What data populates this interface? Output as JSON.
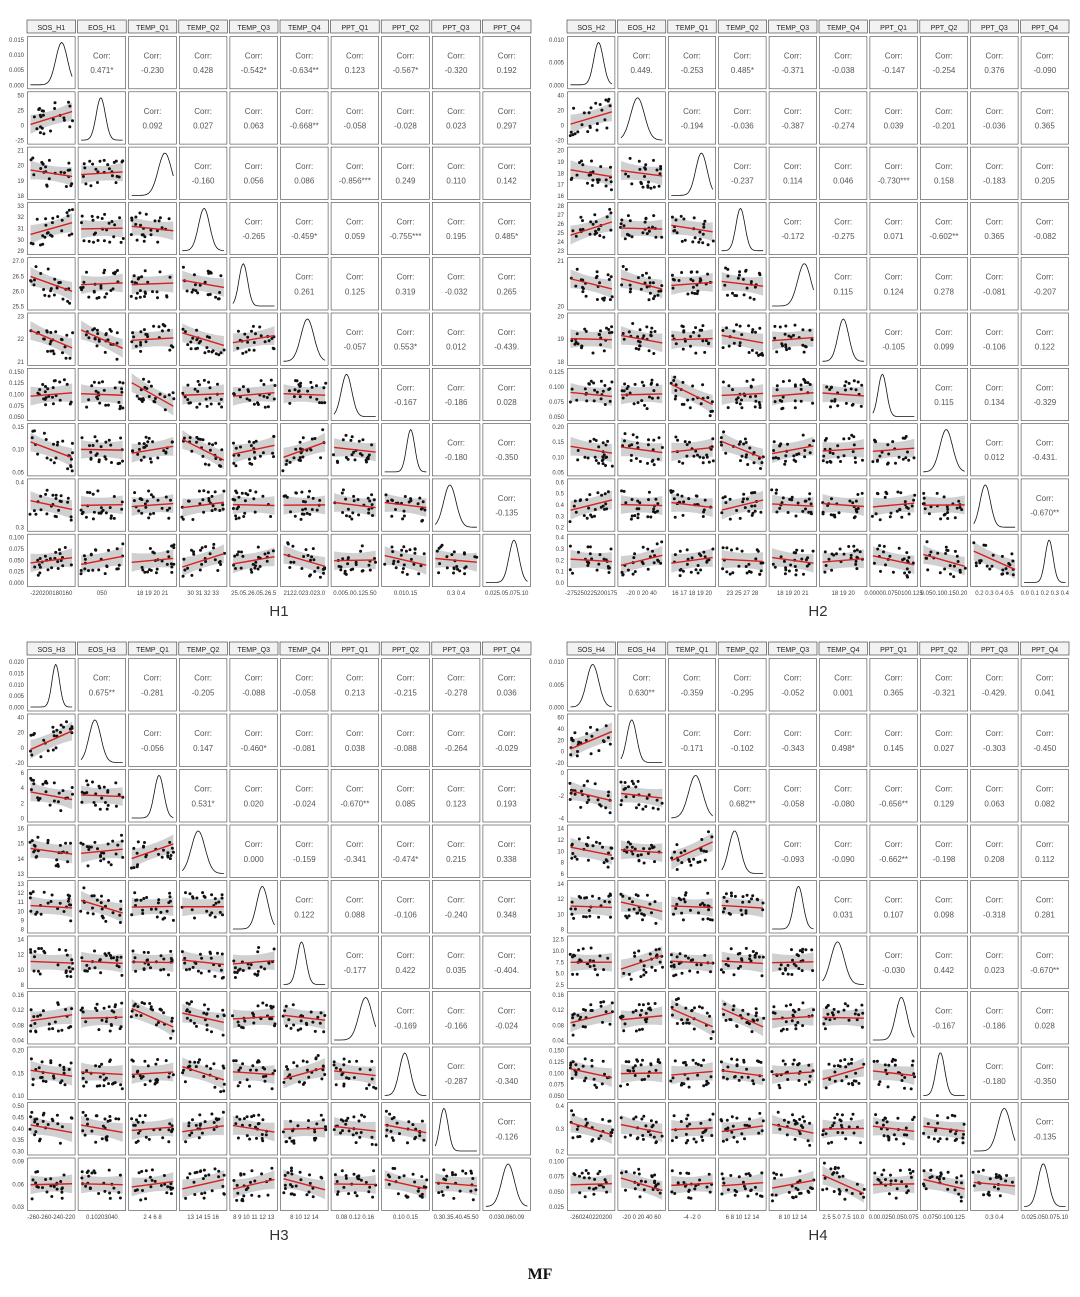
{
  "caption": "MF",
  "chart_data": [
    {
      "type": "scatter-matrix",
      "title": "H1",
      "variables": [
        "SOS_H1",
        "EOS_H1",
        "TEMP_Q1",
        "TEMP_Q2",
        "TEMP_Q3",
        "TEMP_Q4",
        "PPT_Q1",
        "PPT_Q2",
        "PPT_Q3",
        "PPT_Q4"
      ],
      "corr_label": "Corr:",
      "corr": [
        [
          "0.471*",
          "-0.230",
          "0.428",
          "-0.542*",
          "-0.634**",
          "0.123",
          "-0.567*",
          "-0.320",
          "0.192"
        ],
        [
          "0.092",
          "0.027",
          "0.063",
          "-0.668**",
          "-0.058",
          "-0.028",
          "0.023",
          "0.297"
        ],
        [
          "-0.160",
          "0.056",
          "0.086",
          "-0.856***",
          "0.249",
          "0.110",
          "0.142"
        ],
        [
          "-0.265",
          "-0.459*",
          "0.059",
          "-0.755***",
          "0.195",
          "0.485*"
        ],
        [
          "0.261",
          "0.125",
          "0.319",
          "-0.032",
          "0.265"
        ],
        [
          "-0.057",
          "0.553*",
          "0.012",
          "-0.439."
        ],
        [
          "-0.167",
          "-0.186",
          "0.028"
        ],
        [
          "-0.180",
          "-0.350"
        ],
        [
          "-0.135"
        ]
      ],
      "y_ticks": [
        [
          "0.015",
          "0.010",
          "0.005",
          "0.000"
        ],
        [
          "50",
          "25",
          "0",
          "-25"
        ],
        [
          "21",
          "20",
          "19",
          "18"
        ],
        [
          "33",
          "32",
          "31",
          "30",
          "29"
        ],
        [
          "27.0",
          "26.5",
          "26.0",
          "25.5"
        ],
        [
          "23",
          "22",
          "21"
        ],
        [
          "0.150",
          "0.125",
          "0.100",
          "0.075",
          "0.050"
        ],
        [
          "0.15",
          "0.10",
          "0.05"
        ],
        [
          "0.4",
          "0.3"
        ],
        [
          "0.100",
          "0.075",
          "0.050",
          "0.025",
          "0.000"
        ]
      ],
      "x_ticks": [
        "-220200180160",
        "050",
        "18 19 20 21",
        "30 31 32 33",
        "25.05.26.05.26.5",
        "2122.023.023.0",
        "0.005.00.125.50",
        "0.010.15",
        "0.3 0.4",
        "0.025.05.075.10"
      ]
    },
    {
      "type": "scatter-matrix",
      "title": "H2",
      "variables": [
        "SOS_H2",
        "EOS_H2",
        "TEMP_Q1",
        "TEMP_Q2",
        "TEMP_Q3",
        "TEMP_Q4",
        "PPT_Q1",
        "PPT_Q2",
        "PPT_Q3",
        "PPT_Q4"
      ],
      "corr_label": "Corr:",
      "corr": [
        [
          "0.449.",
          "-0.253",
          "0.485*",
          "-0.371",
          "-0.038",
          "-0.147",
          "-0.254",
          "0.376",
          "-0.090"
        ],
        [
          "-0.194",
          "-0.036",
          "-0.387",
          "-0.274",
          "0.039",
          "-0.201",
          "-0.036",
          "0.365"
        ],
        [
          "-0.237",
          "0.114",
          "0.046",
          "-0.730***",
          "0.158",
          "-0.183",
          "0.205"
        ],
        [
          "-0.172",
          "-0.275",
          "0.071",
          "-0.602**",
          "0.365",
          "-0.082"
        ],
        [
          "0.115",
          "0.124",
          "0.278",
          "-0.081",
          "-0.207"
        ],
        [
          "-0.105",
          "0.099",
          "-0.106",
          "0.122"
        ],
        [
          "0.115",
          "0.134",
          "-0.329"
        ],
        [
          "0.012",
          "-0.431."
        ],
        [
          "-0.670**"
        ]
      ],
      "y_ticks": [
        [
          "0.010",
          "0.005",
          "0.000"
        ],
        [
          "40",
          "20",
          "0",
          "-20"
        ],
        [
          "20",
          "19",
          "18",
          "17",
          "16"
        ],
        [
          "28",
          "27",
          "26",
          "25",
          "24",
          "23"
        ],
        [
          "21",
          "20"
        ],
        [
          "20",
          "19",
          "18"
        ],
        [
          "0.125",
          "0.100",
          "0.075",
          "0.050"
        ],
        [
          "0.20",
          "0.15",
          "0.10",
          "0.05"
        ],
        [
          "0.6",
          "0.5",
          "0.4",
          "0.3",
          "0.2"
        ],
        [
          "0.4",
          "0.3",
          "0.2",
          "0.1",
          "0.0"
        ]
      ],
      "x_ticks": [
        "-275250225200175",
        "-20 0 20 40",
        "16 17 18 19 20",
        "23 25 27 28",
        "18 19 20 21",
        "18 19 20",
        "0.00000.0750100.125",
        "0.050.100.150.20",
        "0.2 0.3 0.4 0.5",
        "0.0 0.1 0.2 0.3 0.4"
      ]
    },
    {
      "type": "scatter-matrix",
      "title": "H3",
      "variables": [
        "SOS_H3",
        "EOS_H3",
        "TEMP_Q1",
        "TEMP_Q2",
        "TEMP_Q3",
        "TEMP_Q4",
        "PPT_Q1",
        "PPT_Q2",
        "PPT_Q3",
        "PPT_Q4"
      ],
      "corr_label": "Corr:",
      "corr": [
        [
          "0.675**",
          "-0.281",
          "-0.205",
          "-0.088",
          "-0.058",
          "0.213",
          "-0.215",
          "-0.278",
          "0.036"
        ],
        [
          "-0.056",
          "0.147",
          "-0.460*",
          "-0.081",
          "0.038",
          "-0.088",
          "-0.264",
          "-0.029"
        ],
        [
          "0.531*",
          "0.020",
          "-0.024",
          "-0.670**",
          "0.085",
          "0.123",
          "0.193"
        ],
        [
          "0.000",
          "-0.159",
          "-0.341",
          "-0.474*",
          "0.215",
          "0.338"
        ],
        [
          "0.122",
          "0.088",
          "-0.106",
          "-0.240",
          "0.348"
        ],
        [
          "-0.177",
          "0.422",
          "0.035",
          "-0.404."
        ],
        [
          "-0.169",
          "-0.166",
          "-0.024"
        ],
        [
          "-0.287",
          "-0.340"
        ],
        [
          "-0.126"
        ]
      ],
      "y_ticks": [
        [
          "0.020",
          "0.015",
          "0.010",
          "0.005",
          "0.000"
        ],
        [
          "40",
          "20",
          "0",
          "-20"
        ],
        [
          "6",
          "4",
          "2",
          "0"
        ],
        [
          "16",
          "15",
          "14",
          "13"
        ],
        [
          "13",
          "12",
          "11",
          "10",
          "9",
          "8"
        ],
        [
          "14",
          "12",
          "10",
          "8"
        ],
        [
          "0.16",
          "0.12",
          "0.08",
          "0.04"
        ],
        [
          "0.20",
          "0.15",
          "0.10"
        ],
        [
          "0.50",
          "0.45",
          "0.40",
          "0.35",
          "0.30"
        ],
        [
          "0.09",
          "0.06",
          "0.03"
        ]
      ],
      "x_ticks": [
        "-260-260-240-220",
        "0.10203040",
        "2 4 6 8",
        "13 14 15 16",
        "8 9 10 11 12 13",
        "8 10 12 14",
        "0.08 0.12 0.16",
        "0.10 0.15",
        "0.30.35.40.45.50",
        "0.030.060.09"
      ]
    },
    {
      "type": "scatter-matrix",
      "title": "H4",
      "variables": [
        "SOS_H4",
        "EOS_H4",
        "TEMP_Q1",
        "TEMP_Q2",
        "TEMP_Q3",
        "TEMP_Q4",
        "PPT_Q1",
        "PPT_Q2",
        "PPT_Q3",
        "PPT_Q4"
      ],
      "corr_label": "Corr:",
      "corr": [
        [
          "0.630**",
          "-0.359",
          "-0.295",
          "-0.052",
          "0.001",
          "0.365",
          "-0.321",
          "-0.429.",
          "0.041"
        ],
        [
          "-0.171",
          "-0.102",
          "-0.343",
          "0.498*",
          "0.145",
          "0.027",
          "-0.303",
          "-0.450"
        ],
        [
          "0.682**",
          "-0.058",
          "-0.080",
          "-0.656**",
          "0.129",
          "0.063",
          "0.082"
        ],
        [
          "-0.093",
          "-0.090",
          "-0.662**",
          "-0.198",
          "0.208",
          "0.112"
        ],
        [
          "0.031",
          "0.107",
          "0.098",
          "-0.318",
          "0.281"
        ],
        [
          "-0.030",
          "0.442",
          "0.023",
          "-0.670**"
        ],
        [
          "-0.167",
          "-0.186",
          "0.028"
        ],
        [
          "-0.180",
          "-0.350"
        ],
        [
          "-0.135"
        ]
      ],
      "y_ticks": [
        [
          "0.010",
          "0.005",
          "0.000"
        ],
        [
          "60",
          "40",
          "20",
          "0",
          "-20"
        ],
        [
          "0",
          "-2",
          "-4"
        ],
        [
          "14",
          "12",
          "10",
          "8",
          "6"
        ],
        [
          "14",
          "12",
          "10",
          "8"
        ],
        [
          "12.5",
          "10.0",
          "7.5",
          "5.0",
          "2.5"
        ],
        [
          "0.16",
          "0.12",
          "0.08",
          "0.04"
        ],
        [
          "0.150",
          "0.125",
          "0.100",
          "0.075",
          "0.050"
        ],
        [
          "0.4",
          "0.3",
          "0.2"
        ],
        [
          "0.100",
          "0.075",
          "0.050",
          "0.025"
        ]
      ],
      "x_ticks": [
        "-260240220200",
        "-20 0 20 40 60",
        "-4 -2 0",
        "6 8 10 12 14",
        "8 10 12 14",
        "2.5 5.0 7.5 10.0",
        "0.00.0250.050.075",
        "0.0750.100.125",
        "0.3 0.4",
        "0.025.050.075.10"
      ]
    }
  ]
}
